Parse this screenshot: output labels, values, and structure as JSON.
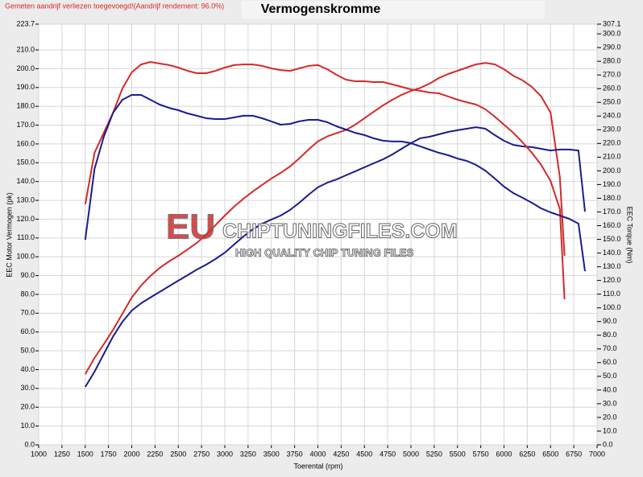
{
  "chart_data": {
    "type": "line",
    "title": "Vermogenskromme",
    "subtitle": "Gemeten aandrijf verliezen toegevoegd!(Aandrijf rendement: 96.0%)",
    "xlabel": "Toerental (rpm)",
    "ylabel": "EEC Motor Vermogen (pk)",
    "y2label": "EEC Torque (Nm)",
    "annotations": [
      "EU",
      "CHIPTUNINGFILES.COM",
      "HIGH QUALITY CHIP TUNING FILES"
    ],
    "grid": true,
    "xlim": [
      1000,
      7000
    ],
    "xticks": [
      1000,
      1250,
      1500,
      1750,
      2000,
      2250,
      2500,
      2750,
      3000,
      3250,
      3500,
      3750,
      4000,
      4250,
      4500,
      4750,
      5000,
      5250,
      5500,
      5750,
      6000,
      6250,
      6500,
      6750,
      7000
    ],
    "ylim": [
      0,
      223.7
    ],
    "yticks": [
      {
        "value": 0,
        "label": "0.0"
      },
      {
        "value": 10,
        "label": "10.0"
      },
      {
        "value": 20,
        "label": "20.0"
      },
      {
        "value": 30,
        "label": "30.0"
      },
      {
        "value": 40,
        "label": "40.0"
      },
      {
        "value": 50,
        "label": "50.0"
      },
      {
        "value": 60,
        "label": "60.0"
      },
      {
        "value": 70,
        "label": "70.0"
      },
      {
        "value": 80,
        "label": "80.0"
      },
      {
        "value": 90,
        "label": "90.0"
      },
      {
        "value": 100,
        "label": "100.0"
      },
      {
        "value": 110,
        "label": "110.0"
      },
      {
        "value": 120,
        "label": "120.0"
      },
      {
        "value": 130,
        "label": "130.0"
      },
      {
        "value": 140,
        "label": "140.0"
      },
      {
        "value": 150,
        "label": "150.0"
      },
      {
        "value": 160,
        "label": "160.0"
      },
      {
        "value": 170,
        "label": "170.0"
      },
      {
        "value": 180,
        "label": "180.0"
      },
      {
        "value": 190,
        "label": "190.0"
      },
      {
        "value": 200,
        "label": "200.0"
      },
      {
        "value": 210,
        "label": "210.0"
      },
      223.7
    ],
    "y2lim": [
      0,
      307.1
    ],
    "y2ticks": [
      {
        "value": 0,
        "label": "0.0"
      },
      {
        "value": 10,
        "label": "10.0"
      },
      {
        "value": 20,
        "label": "20.0"
      },
      {
        "value": 30,
        "label": "30.0"
      },
      {
        "value": 40,
        "label": "40.0"
      },
      {
        "value": 50,
        "label": "50.0"
      },
      {
        "value": 60,
        "label": "60.0"
      },
      {
        "value": 70,
        "label": "70.0"
      },
      {
        "value": 80,
        "label": "80.0"
      },
      {
        "value": 90,
        "label": "90.0"
      },
      {
        "value": 100,
        "label": "100.0"
      },
      {
        "value": 110,
        "label": "110.0"
      },
      {
        "value": 120,
        "label": "120.0"
      },
      {
        "value": 130,
        "label": "130.0"
      },
      {
        "value": 140,
        "label": "140.0"
      },
      {
        "value": 150,
        "label": "150.0"
      },
      {
        "value": 160,
        "label": "160.0"
      },
      {
        "value": 170,
        "label": "170.0"
      },
      {
        "value": 180,
        "label": "180.0"
      },
      {
        "value": 190,
        "label": "190.0"
      },
      {
        "value": 200,
        "label": "200.0"
      },
      {
        "value": 210,
        "label": "210.0"
      },
      {
        "value": 220,
        "label": "220.0"
      },
      {
        "value": 230,
        "label": "230.0"
      },
      {
        "value": 240,
        "label": "240.0"
      },
      {
        "value": 250,
        "label": "250.0"
      },
      {
        "value": 260,
        "label": "260.0"
      },
      {
        "value": 270,
        "label": "270.0"
      },
      {
        "value": 280,
        "label": "280.0"
      },
      {
        "value": 290,
        "label": "290.0"
      },
      {
        "value": 300,
        "label": "300.0"
      },
      307.1
    ],
    "x": [
      1500,
      1600,
      1700,
      1800,
      1900,
      2000,
      2100,
      2200,
      2300,
      2400,
      2500,
      2600,
      2700,
      2800,
      2900,
      3000,
      3100,
      3200,
      3300,
      3400,
      3500,
      3600,
      3700,
      3800,
      3900,
      4000,
      4100,
      4200,
      4300,
      4400,
      4500,
      4600,
      4700,
      4800,
      4900,
      5000,
      5100,
      5200,
      5300,
      5400,
      5500,
      5600,
      5700,
      5800,
      5900,
      6000,
      6100,
      6200,
      6300,
      6400,
      6500,
      6600,
      6650,
      6700,
      6800,
      6870
    ],
    "series": [
      {
        "color": "#d42a2a",
        "values": [
          37.6,
          46.2,
          53.5,
          61.2,
          69.7,
          78.3,
          84.7,
          89.8,
          94.1,
          97.5,
          100.5,
          103.9,
          107.4,
          111.6,
          116.8,
          121.9,
          126.6,
          130.9,
          134.7,
          138.2,
          141.6,
          144.6,
          148.0,
          152.3,
          157.0,
          161.4,
          164.0,
          165.7,
          167.4,
          170.2,
          173.7,
          177.1,
          180.5,
          183.5,
          186.1,
          188.2,
          189.8,
          192.1,
          195.0,
          197.2,
          198.9,
          200.6,
          202.3,
          203.1,
          202.3,
          199.7,
          196.3,
          193.8,
          190.3,
          185.2,
          176.6,
          142.4,
          100.5,
          null,
          null,
          null
        ]
      },
      {
        "color": "#1c1c8e",
        "values": [
          30.8,
          38.9,
          48.3,
          57.7,
          65.4,
          71.4,
          75.3,
          78.3,
          81.3,
          84.3,
          87.3,
          90.2,
          93.2,
          95.8,
          98.8,
          102.2,
          106.5,
          110.8,
          114.6,
          117.6,
          119.8,
          121.9,
          124.9,
          128.7,
          133.0,
          136.9,
          139.4,
          141.1,
          143.3,
          145.4,
          147.6,
          149.7,
          151.8,
          154.4,
          157.4,
          160.4,
          163.0,
          163.8,
          165.1,
          166.4,
          167.3,
          168.1,
          168.9,
          168.1,
          164.7,
          161.7,
          159.5,
          158.7,
          158.3,
          157.4,
          156.5,
          157.0,
          157.0,
          157.0,
          156.5,
          124.0
        ]
      },
      {
        "color": "#d42a2a",
        "axis": "y2",
        "values": [
          175.6,
          213.2,
          227.8,
          242.5,
          260.1,
          271.9,
          277.7,
          279.5,
          278.3,
          277.2,
          275.4,
          273.0,
          271.3,
          271.3,
          273.0,
          275.4,
          277.2,
          277.7,
          277.7,
          276.6,
          274.8,
          273.6,
          273.0,
          274.8,
          276.6,
          277.2,
          274.2,
          270.1,
          266.6,
          265.4,
          265.4,
          264.8,
          264.8,
          263.1,
          261.3,
          259.5,
          258.4,
          257.2,
          256.6,
          254.3,
          251.9,
          250.1,
          248.4,
          244.9,
          239.6,
          233.7,
          227.8,
          220.8,
          213.2,
          204.3,
          192.6,
          172.1,
          106.3,
          null,
          null,
          null
        ]
      },
      {
        "color": "#1c1c8e",
        "axis": "y2",
        "values": [
          149.7,
          201.4,
          224.9,
          242.5,
          251.9,
          255.4,
          255.4,
          251.9,
          248.4,
          246.0,
          244.3,
          241.9,
          240.2,
          238.4,
          237.8,
          237.8,
          239.0,
          240.2,
          240.2,
          238.4,
          236.1,
          233.7,
          234.3,
          236.1,
          237.2,
          237.2,
          235.5,
          232.5,
          230.2,
          227.8,
          226.1,
          223.7,
          222.0,
          221.4,
          221.4,
          220.2,
          217.9,
          215.5,
          213.2,
          211.4,
          209.0,
          207.3,
          204.3,
          200.2,
          194.4,
          188.5,
          183.8,
          180.3,
          176.7,
          172.6,
          169.7,
          167.4,
          166.2,
          165.0,
          161.5,
          126.8
        ]
      }
    ]
  }
}
